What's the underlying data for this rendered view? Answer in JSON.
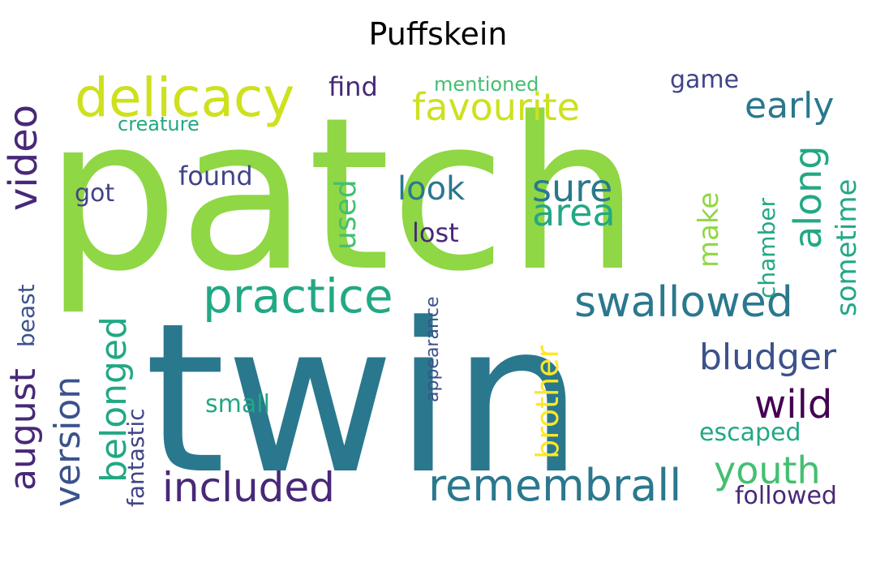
{
  "title": "Puffskein",
  "palette": {
    "yellow": "#cde11d",
    "lime": "#8fd744",
    "green": "#44bf70",
    "teal_green": "#22a884",
    "teal": "#2a788e",
    "blue": "#3b528b",
    "indigo": "#414487",
    "purple": "#482878",
    "dark_purple": "#440154",
    "bright_yellow": "#fde725"
  },
  "words": [
    {
      "text": "patch",
      "color": "lime"
    },
    {
      "text": "twin",
      "color": "teal"
    },
    {
      "text": "delicacy",
      "color": "yellow"
    },
    {
      "text": "favourite",
      "color": "yellow"
    },
    {
      "text": "early",
      "color": "teal"
    },
    {
      "text": "video",
      "color": "purple"
    },
    {
      "text": "practice",
      "color": "teal_green"
    },
    {
      "text": "swallowed",
      "color": "teal"
    },
    {
      "text": "bludger",
      "color": "blue"
    },
    {
      "text": "wild",
      "color": "dark_purple"
    },
    {
      "text": "remembrall",
      "color": "teal"
    },
    {
      "text": "included",
      "color": "purple"
    },
    {
      "text": "youth",
      "color": "green"
    },
    {
      "text": "version",
      "color": "blue"
    },
    {
      "text": "belonged",
      "color": "teal_green"
    },
    {
      "text": "august",
      "color": "purple"
    },
    {
      "text": "sure",
      "color": "teal"
    },
    {
      "text": "area",
      "color": "teal_green"
    },
    {
      "text": "look",
      "color": "teal"
    },
    {
      "text": "along",
      "color": "teal_green"
    },
    {
      "text": "sometime",
      "color": "teal_green"
    },
    {
      "text": "brother",
      "color": "bright_yellow"
    },
    {
      "text": "make",
      "color": "lime"
    },
    {
      "text": "used",
      "color": "green"
    },
    {
      "text": "chamber",
      "color": "teal_green"
    },
    {
      "text": "find",
      "color": "purple"
    },
    {
      "text": "mentioned",
      "color": "green"
    },
    {
      "text": "game",
      "color": "indigo"
    },
    {
      "text": "creature",
      "color": "teal_green"
    },
    {
      "text": "found",
      "color": "indigo"
    },
    {
      "text": "got",
      "color": "indigo"
    },
    {
      "text": "lost",
      "color": "purple"
    },
    {
      "text": "small",
      "color": "teal_green"
    },
    {
      "text": "escaped",
      "color": "teal_green"
    },
    {
      "text": "followed",
      "color": "purple"
    },
    {
      "text": "fantastic",
      "color": "indigo"
    },
    {
      "text": "beast",
      "color": "blue"
    },
    {
      "text": "appearance",
      "color": "blue"
    }
  ]
}
